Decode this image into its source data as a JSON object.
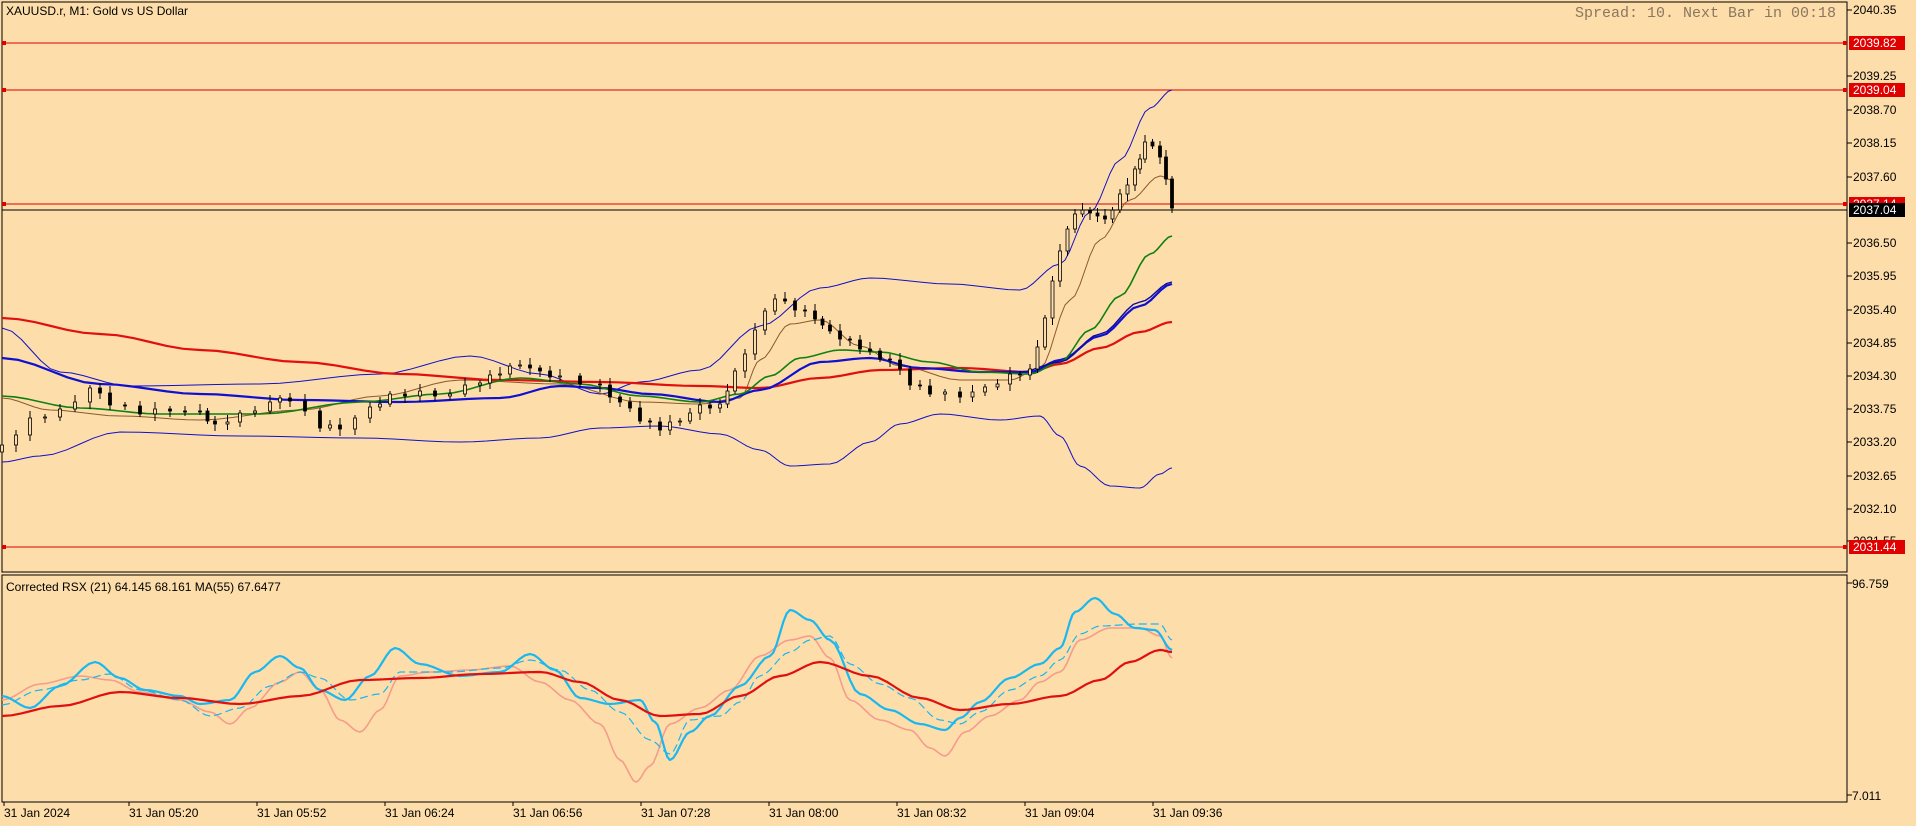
{
  "chart_header": {
    "symbol_title": "XAUUSD.r, M1:  Gold vs US Dollar",
    "spread_status": "Spread: 10. Next Bar in 00:18"
  },
  "indicator_header": {
    "title": "Corrected RSX (21) 64.145 68.161 MA(55) 67.6477",
    "scale_max": "96.759",
    "scale_min": "7.011"
  },
  "price_axis": {
    "ticks": [
      "2040.35",
      "2039.25",
      "2038.70",
      "2038.15",
      "2037.60",
      "2036.50",
      "2035.95",
      "2035.40",
      "2034.85",
      "2034.30",
      "2033.75",
      "2033.20",
      "2032.65",
      "2032.10",
      "2031.55"
    ]
  },
  "time_axis": {
    "labels": [
      "31 Jan 2024",
      "31 Jan 05:20",
      "31 Jan 05:52",
      "31 Jan 06:24",
      "31 Jan 06:56",
      "31 Jan 07:28",
      "31 Jan 08:00",
      "31 Jan 08:32",
      "31 Jan 09:04",
      "31 Jan 09:36"
    ]
  },
  "price_lines": [
    {
      "label": "2039.82",
      "color": "#E00000"
    },
    {
      "label": "2039.04",
      "color": "#E00000"
    },
    {
      "label": "2037.14",
      "color": "#E00000"
    },
    {
      "label": "2031.44",
      "color": "#E00000"
    }
  ],
  "current_price": {
    "label": "2037.04",
    "color": "#000000"
  },
  "colors": {
    "background": "#FDDDAA",
    "candle": "#000000",
    "bollinger": "#1010C8",
    "ma_red": "#E01010",
    "ma_blue": "#1010D0",
    "ma_green": "#108010",
    "ma_thin": "#8B5A2B",
    "rsx_main": "#19B8F0",
    "rsx_signal": "#19B8F0",
    "rsx_fade": "#F59C8C",
    "rsx_ma": "#E01010"
  }
}
